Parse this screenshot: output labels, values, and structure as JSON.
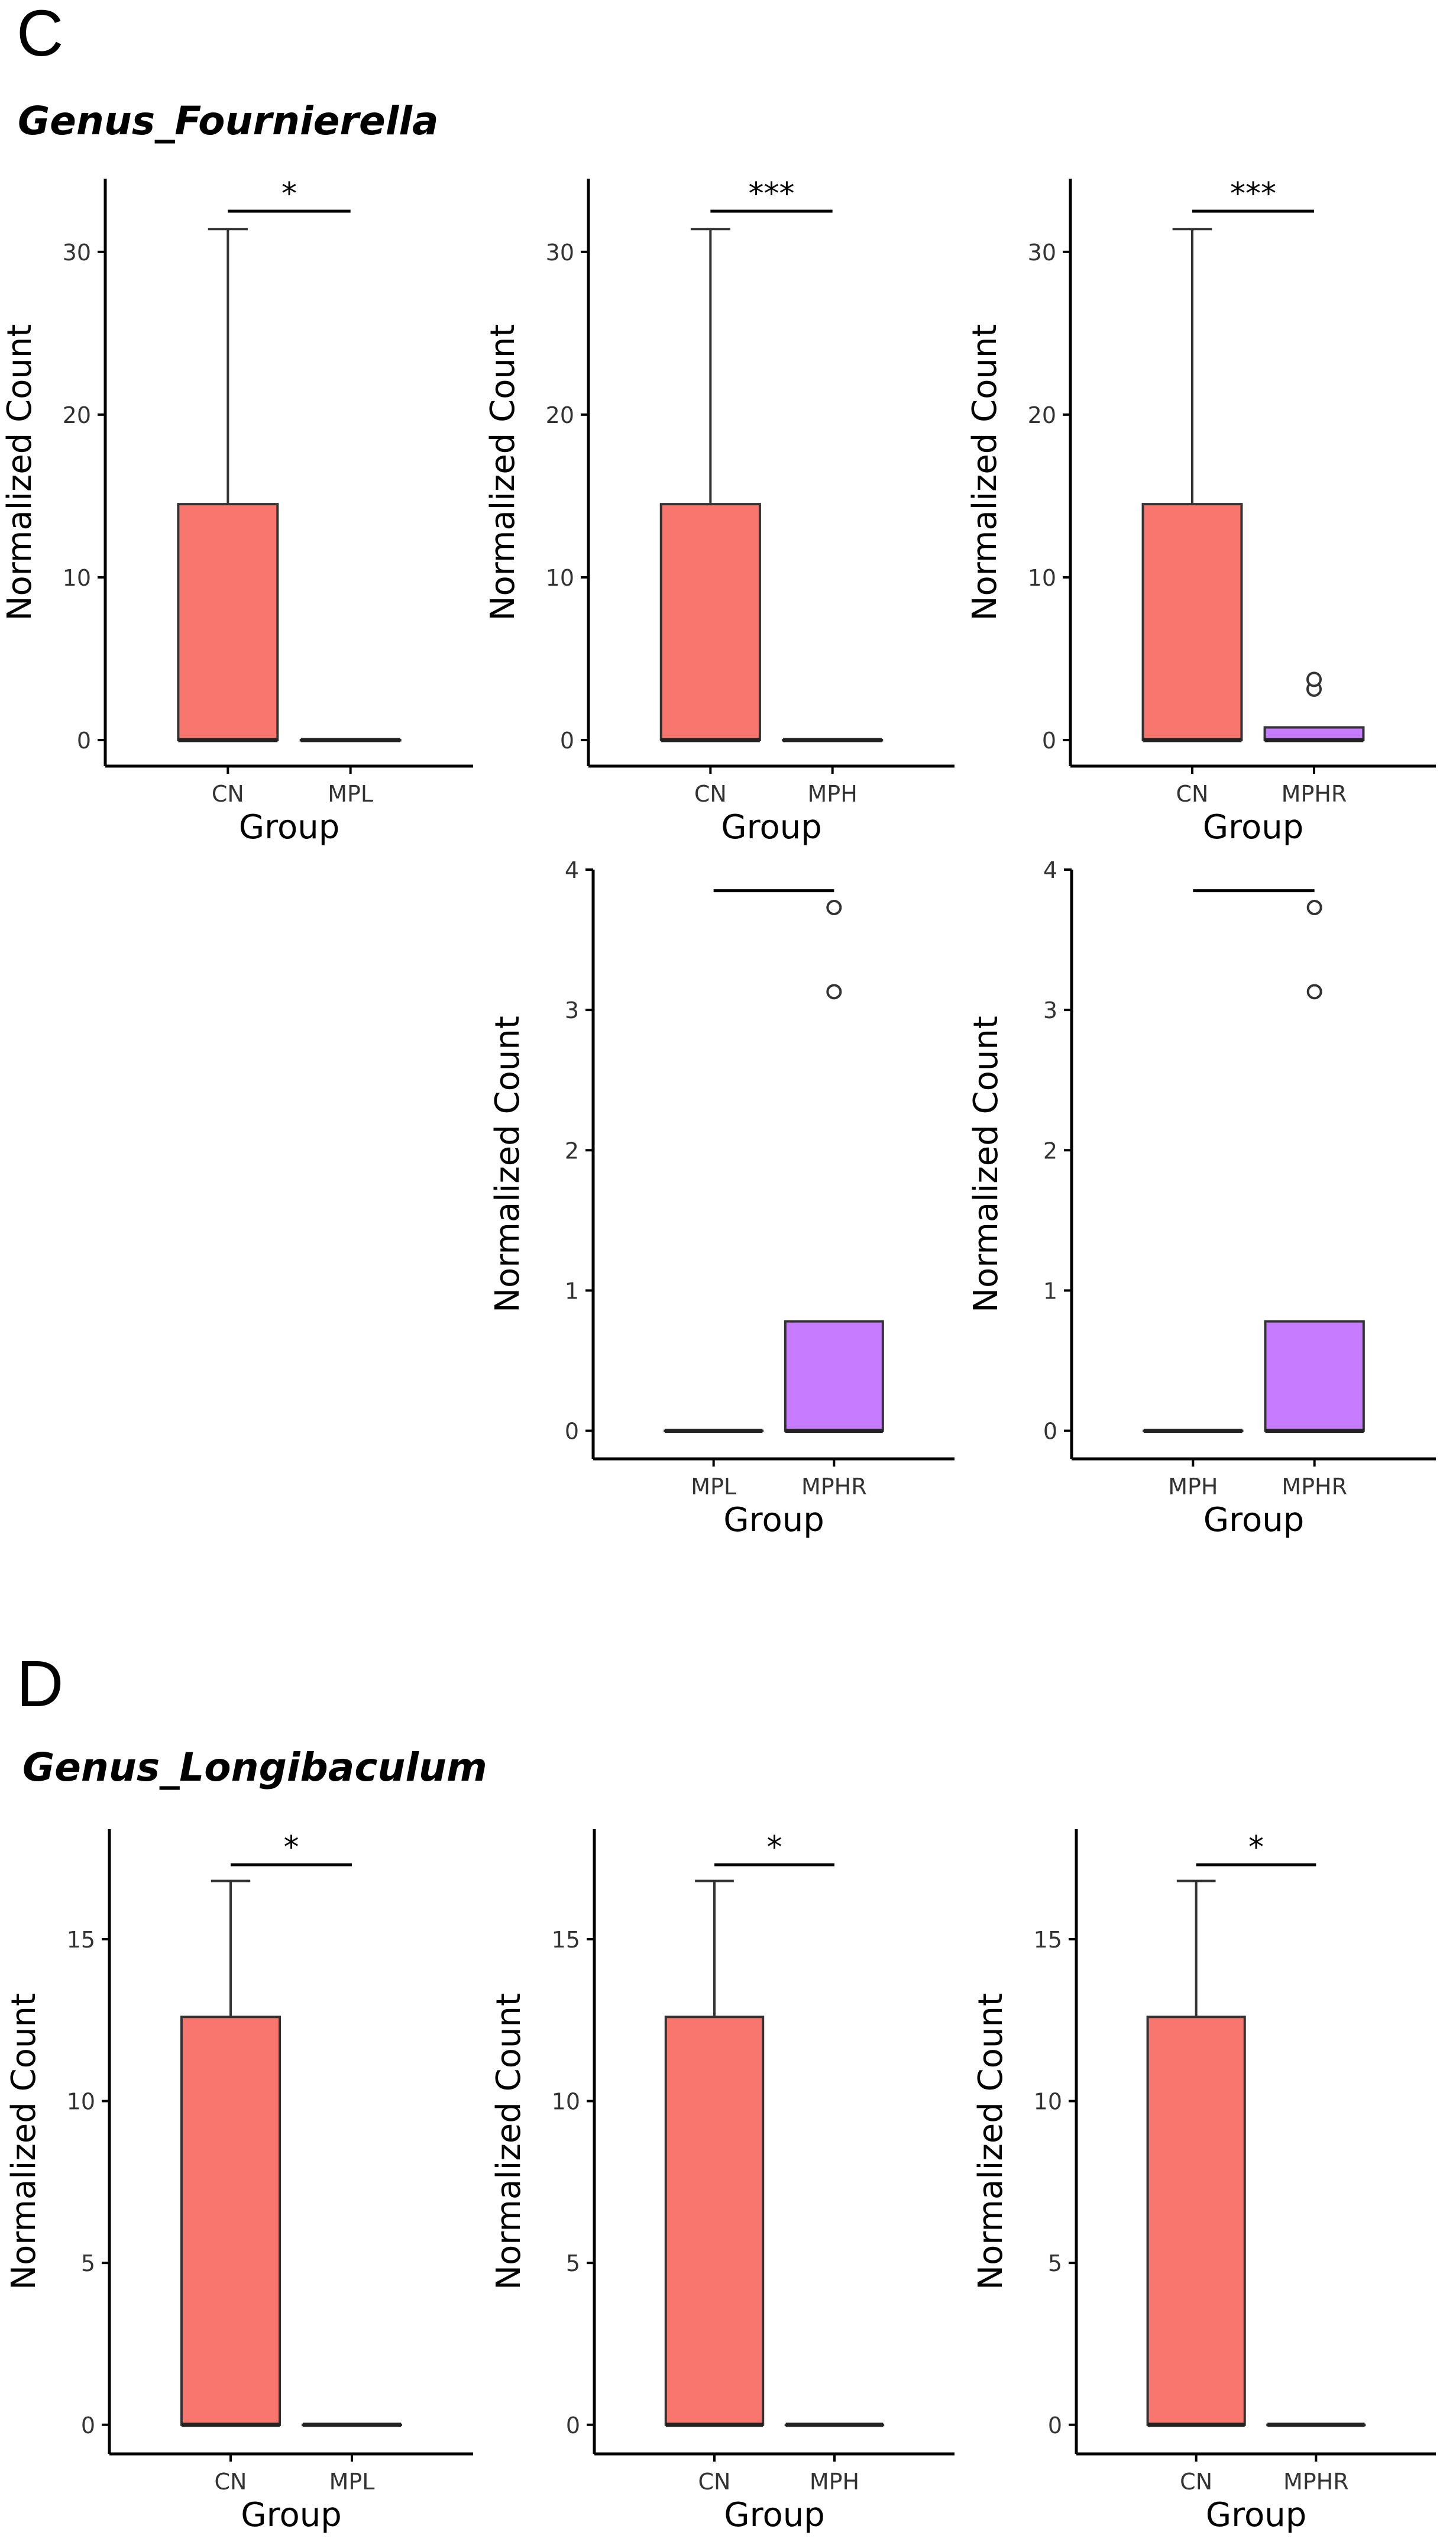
{
  "panels": [
    {
      "letter": "C",
      "genus": "Genus_Fournierella"
    },
    {
      "letter": "D",
      "genus": "Genus_Longibaculum"
    }
  ],
  "colors": {
    "cn_fill": "#F8766D",
    "mphr_fill": "#C77CFF",
    "axis": "#000000"
  },
  "chart_data": [
    {
      "type": "box",
      "panel": "C",
      "title": "",
      "xlabel": "Group",
      "ylabel": "Normalized Count",
      "categories": [
        "CN",
        "MPL"
      ],
      "ylim": [
        -1.6,
        34.5
      ],
      "yticks": [
        0,
        10,
        20,
        30
      ],
      "boxes": [
        {
          "group": "CN",
          "q1": 0,
          "median": 0,
          "q3": 14.5,
          "whisker_low": 0,
          "whisker_high": 31.4,
          "outliers": [],
          "fill": "#F8766D"
        },
        {
          "group": "MPL",
          "q1": 0,
          "median": 0,
          "q3": 0,
          "whisker_low": 0,
          "whisker_high": 0,
          "outliers": [],
          "fill": "#F8766D"
        }
      ],
      "significance": {
        "label": "*",
        "y": 32.5
      }
    },
    {
      "type": "box",
      "panel": "C",
      "title": "",
      "xlabel": "Group",
      "ylabel": "Normalized Count",
      "categories": [
        "CN",
        "MPH"
      ],
      "ylim": [
        -1.6,
        34.5
      ],
      "yticks": [
        0,
        10,
        20,
        30
      ],
      "boxes": [
        {
          "group": "CN",
          "q1": 0,
          "median": 0,
          "q3": 14.5,
          "whisker_low": 0,
          "whisker_high": 31.4,
          "outliers": [],
          "fill": "#F8766D"
        },
        {
          "group": "MPH",
          "q1": 0,
          "median": 0,
          "q3": 0,
          "whisker_low": 0,
          "whisker_high": 0,
          "outliers": [],
          "fill": "#F8766D"
        }
      ],
      "significance": {
        "label": "***",
        "y": 32.5
      }
    },
    {
      "type": "box",
      "panel": "C",
      "title": "",
      "xlabel": "Group",
      "ylabel": "Normalized Count",
      "categories": [
        "CN",
        "MPHR"
      ],
      "ylim": [
        -1.6,
        34.5
      ],
      "yticks": [
        0,
        10,
        20,
        30
      ],
      "boxes": [
        {
          "group": "CN",
          "q1": 0,
          "median": 0,
          "q3": 14.5,
          "whisker_low": 0,
          "whisker_high": 31.4,
          "outliers": [],
          "fill": "#F8766D"
        },
        {
          "group": "MPHR",
          "q1": 0,
          "median": 0,
          "q3": 0.78,
          "whisker_low": 0,
          "whisker_high": 0.78,
          "outliers": [
            3.13,
            3.73
          ],
          "fill": "#C77CFF"
        }
      ],
      "significance": {
        "label": "***",
        "y": 32.5
      }
    },
    {
      "type": "box",
      "panel": "C",
      "title": "",
      "xlabel": "Group",
      "ylabel": "Normalized Count",
      "categories": [
        "MPL",
        "MPHR"
      ],
      "ylim": [
        -0.2,
        4.0
      ],
      "yticks": [
        0,
        1,
        2,
        3,
        4
      ],
      "boxes": [
        {
          "group": "MPL",
          "q1": 0,
          "median": 0,
          "q3": 0,
          "whisker_low": 0,
          "whisker_high": 0,
          "outliers": [],
          "fill": "#F8766D"
        },
        {
          "group": "MPHR",
          "q1": 0,
          "median": 0,
          "q3": 0.78,
          "whisker_low": 0,
          "whisker_high": 0.78,
          "outliers": [
            3.13,
            3.73
          ],
          "fill": "#C77CFF"
        }
      ],
      "significance": {
        "label": "",
        "y": 3.85
      }
    },
    {
      "type": "box",
      "panel": "C",
      "title": "",
      "xlabel": "Group",
      "ylabel": "Normalized Count",
      "categories": [
        "MPH",
        "MPHR"
      ],
      "ylim": [
        -0.2,
        4.0
      ],
      "yticks": [
        0,
        1,
        2,
        3,
        4
      ],
      "boxes": [
        {
          "group": "MPH",
          "q1": 0,
          "median": 0,
          "q3": 0,
          "whisker_low": 0,
          "whisker_high": 0,
          "outliers": [],
          "fill": "#F8766D"
        },
        {
          "group": "MPHR",
          "q1": 0,
          "median": 0,
          "q3": 0.78,
          "whisker_low": 0,
          "whisker_high": 0.78,
          "outliers": [
            3.13,
            3.73
          ],
          "fill": "#C77CFF"
        }
      ],
      "significance": {
        "label": "",
        "y": 3.85
      }
    },
    {
      "type": "box",
      "panel": "D",
      "title": "",
      "xlabel": "Group",
      "ylabel": "Normalized Count",
      "categories": [
        "CN",
        "MPL"
      ],
      "ylim": [
        -0.9,
        18.4
      ],
      "yticks": [
        0,
        5,
        10,
        15
      ],
      "boxes": [
        {
          "group": "CN",
          "q1": 0,
          "median": 0,
          "q3": 12.6,
          "whisker_low": 0,
          "whisker_high": 16.8,
          "outliers": [],
          "fill": "#F8766D"
        },
        {
          "group": "MPL",
          "q1": 0,
          "median": 0,
          "q3": 0,
          "whisker_low": 0,
          "whisker_high": 0,
          "outliers": [],
          "fill": "#F8766D"
        }
      ],
      "significance": {
        "label": "*",
        "y": 17.3
      }
    },
    {
      "type": "box",
      "panel": "D",
      "title": "",
      "xlabel": "Group",
      "ylabel": "Normalized Count",
      "categories": [
        "CN",
        "MPH"
      ],
      "ylim": [
        -0.9,
        18.4
      ],
      "yticks": [
        0,
        5,
        10,
        15
      ],
      "boxes": [
        {
          "group": "CN",
          "q1": 0,
          "median": 0,
          "q3": 12.6,
          "whisker_low": 0,
          "whisker_high": 16.8,
          "outliers": [],
          "fill": "#F8766D"
        },
        {
          "group": "MPH",
          "q1": 0,
          "median": 0,
          "q3": 0,
          "whisker_low": 0,
          "whisker_high": 0,
          "outliers": [],
          "fill": "#F8766D"
        }
      ],
      "significance": {
        "label": "*",
        "y": 17.3
      }
    },
    {
      "type": "box",
      "panel": "D",
      "title": "",
      "xlabel": "Group",
      "ylabel": "Normalized Count",
      "categories": [
        "CN",
        "MPHR"
      ],
      "ylim": [
        -0.9,
        18.4
      ],
      "yticks": [
        0,
        5,
        10,
        15
      ],
      "boxes": [
        {
          "group": "CN",
          "q1": 0,
          "median": 0,
          "q3": 12.6,
          "whisker_low": 0,
          "whisker_high": 16.8,
          "outliers": [],
          "fill": "#F8766D"
        },
        {
          "group": "MPHR",
          "q1": 0,
          "median": 0,
          "q3": 0,
          "whisker_low": 0,
          "whisker_high": 0,
          "outliers": [],
          "fill": "#F8766D"
        }
      ],
      "significance": {
        "label": "*",
        "y": 17.3
      }
    }
  ]
}
